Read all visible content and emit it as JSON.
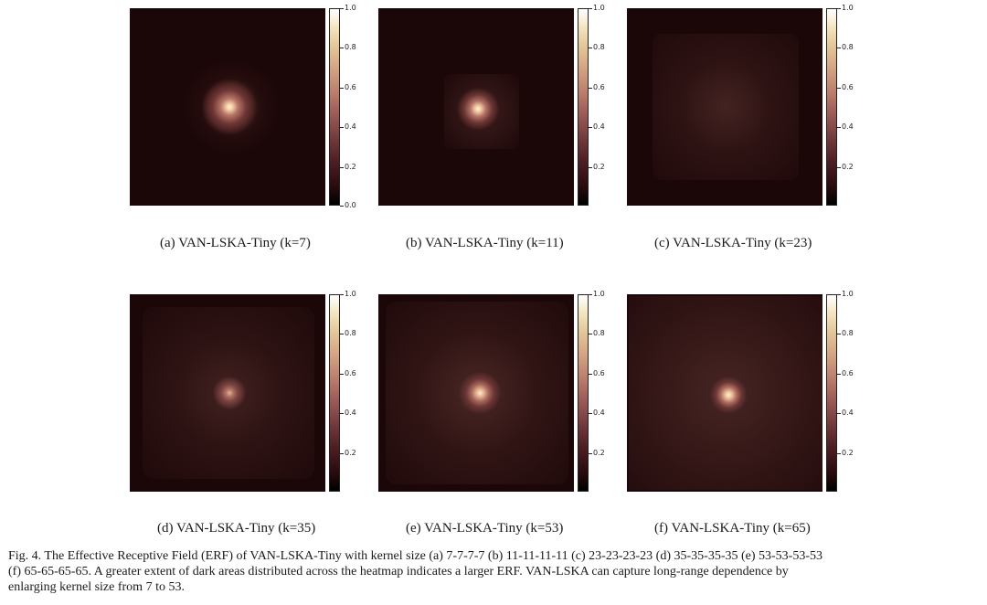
{
  "panels": [
    {
      "caption": "(a) VAN-LSKA-Tiny (k=7)"
    },
    {
      "caption": "(b) VAN-LSKA-Tiny (k=11)"
    },
    {
      "caption": "(c) VAN-LSKA-Tiny (k=23)"
    },
    {
      "caption": "(d) VAN-LSKA-Tiny (k=35)"
    },
    {
      "caption": "(e) VAN-LSKA-Tiny (k=53)"
    },
    {
      "caption": "(f) VAN-LSKA-Tiny (k=65)"
    }
  ],
  "colorbar_ticks": {
    "first": [
      "1.0",
      "0.8",
      "0.6",
      "0.4",
      "0.2",
      "0.0"
    ],
    "other": [
      "1.0",
      "0.8",
      "0.6",
      "0.4",
      "0.2"
    ]
  },
  "caption_line1": "Fig. 4.  The Effective Receptive Field (ERF) of VAN-LSKA-Tiny with kernel size (a) 7-7-7-7 (b) 11-11-11-11 (c) 23-23-23-23 (d) 35-35-35-35 (e) 53-53-53-53",
  "caption_line2": "(f) 65-65-65-65. A greater extent of dark areas distributed across the heatmap indicates a larger ERF. VAN-LSKA can capture long-range dependence by",
  "caption_line3": "enlarging kernel size from 7 to 53.",
  "colors": {
    "background": "#1c0708",
    "peak": "#fff6dc"
  }
}
